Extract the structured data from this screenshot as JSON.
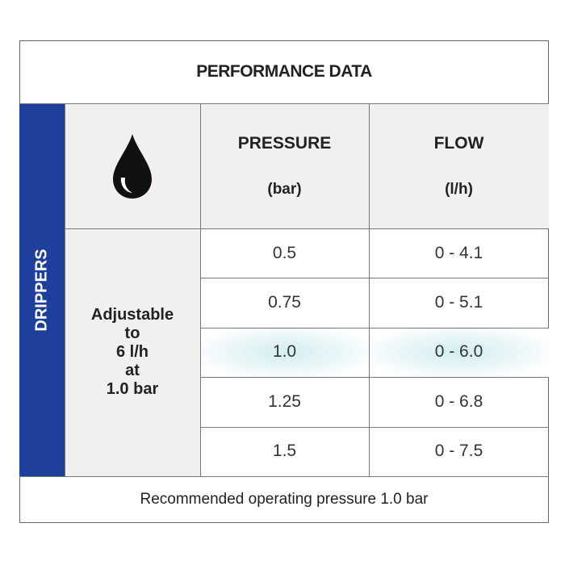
{
  "table": {
    "title": "PERFORMANCE DATA",
    "side_label": "DRIPPERS",
    "columns": [
      {
        "label": "PRESSURE",
        "unit": "(bar)"
      },
      {
        "label": "FLOW",
        "unit": "(l/h)"
      }
    ],
    "description": [
      "Adjustable",
      "to",
      "6 l/h",
      "at",
      "1.0 bar"
    ],
    "rows": [
      [
        "0.5",
        "0 - 4.1"
      ],
      [
        "0.75",
        "0 - 5.1"
      ],
      [
        "1.0",
        "0 - 6.0"
      ],
      [
        "1.25",
        "0 - 6.8"
      ],
      [
        "1.5",
        "0 - 7.5"
      ]
    ],
    "footer": "Recommended operating pressure 1.0 bar"
  }
}
